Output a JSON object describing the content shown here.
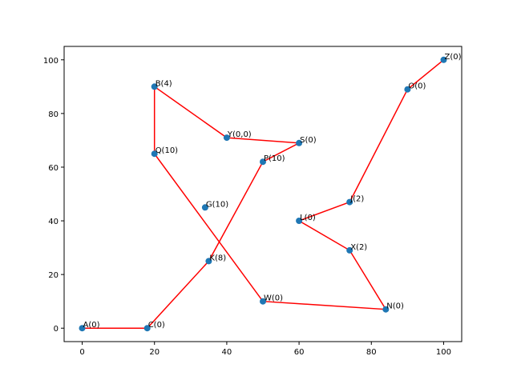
{
  "chart_data": {
    "type": "scatter",
    "title": "",
    "xlabel": "",
    "ylabel": "",
    "xlim": [
      -5,
      105
    ],
    "ylim": [
      -5,
      105
    ],
    "xticks": [
      0,
      20,
      40,
      60,
      80,
      100
    ],
    "yticks": [
      0,
      20,
      40,
      60,
      80,
      100
    ],
    "grid": false,
    "colors": {
      "point": "#1f77b4",
      "route": "#ff0000"
    },
    "points": [
      {
        "label": "A(0)",
        "x": 0,
        "y": 0
      },
      {
        "label": "C(0)",
        "x": 18,
        "y": 0
      },
      {
        "label": "K(8)",
        "x": 35,
        "y": 25
      },
      {
        "label": "P(10)",
        "x": 50,
        "y": 62
      },
      {
        "label": "S(0)",
        "x": 60,
        "y": 69
      },
      {
        "label": "Y(0,0)",
        "x": 40,
        "y": 71
      },
      {
        "label": "B(4)",
        "x": 20,
        "y": 90
      },
      {
        "label": "Q(10)",
        "x": 20,
        "y": 65
      },
      {
        "label": "G(10)",
        "x": 34,
        "y": 45
      },
      {
        "label": "W(0)",
        "x": 50,
        "y": 10
      },
      {
        "label": "N(0)",
        "x": 84,
        "y": 7
      },
      {
        "label": "X(2)",
        "x": 74,
        "y": 29
      },
      {
        "label": "L(0)",
        "x": 60,
        "y": 40
      },
      {
        "label": "J(2)",
        "x": 74,
        "y": 47
      },
      {
        "label": "O(0)",
        "x": 90,
        "y": 89
      },
      {
        "label": "Z(0)",
        "x": 100,
        "y": 100
      }
    ],
    "route_order": [
      "A(0)",
      "C(0)",
      "K(8)",
      "P(10)",
      "S(0)",
      "Y(0,0)",
      "B(4)",
      "Q(10)",
      "W(0)",
      "N(0)",
      "X(2)",
      "L(0)",
      "J(2)",
      "O(0)",
      "Z(0)"
    ]
  }
}
